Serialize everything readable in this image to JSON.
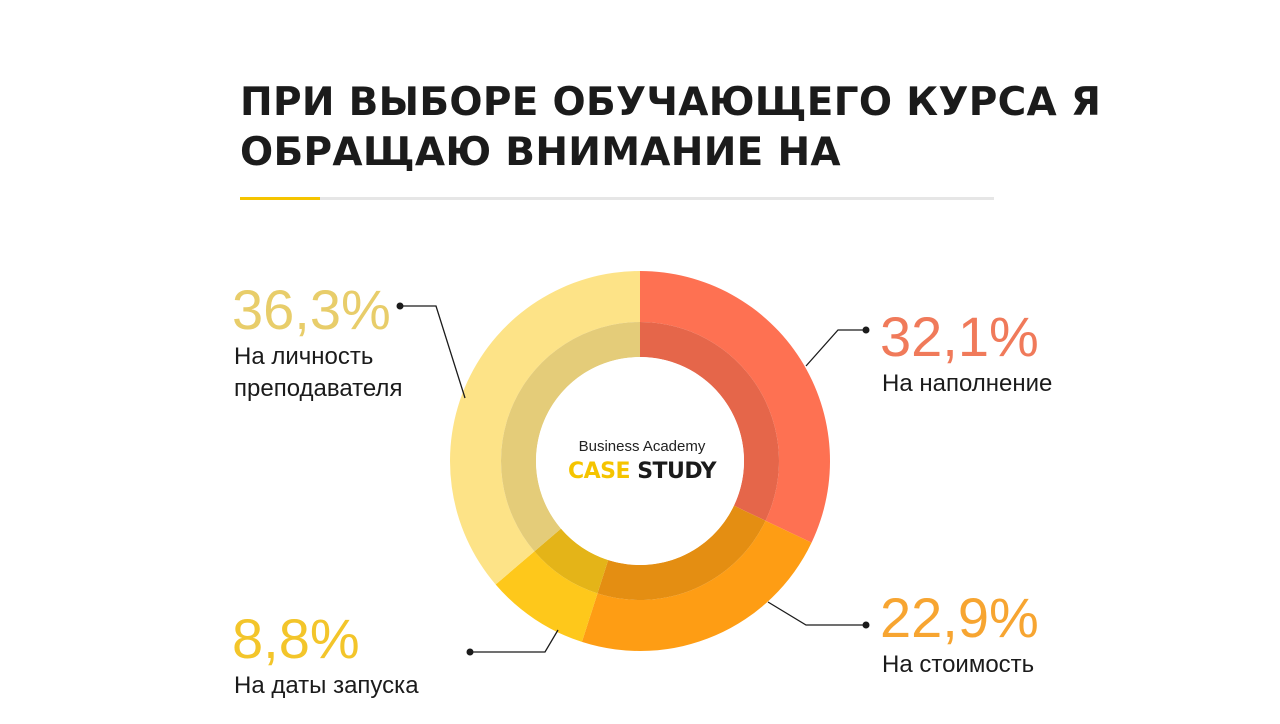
{
  "title": {
    "line1": "ПРИ ВЫБОРЕ ОБУЧАЮЩЕГО КУРСА Я",
    "line2": "ОБРАЩАЮ ВНИМАНИЕ НА"
  },
  "logo": {
    "top": "Business Academy",
    "case": "CASE",
    "study": "STUDY"
  },
  "colors": {
    "accent": "#f5c400",
    "title": "#1b1b1b"
  },
  "chart_data": {
    "type": "pie",
    "donut": true,
    "title": "ПРИ ВЫБОРЕ ОБУЧАЮЩЕГО КУРСА Я ОБРАЩАЮ ВНИМАНИЕ НА",
    "slices": [
      {
        "value": 32.1,
        "value_label": "32,1%",
        "label": "На наполнение",
        "color": "#fe7152",
        "inner_color": "#e5664a",
        "label_color": "#f07a5a"
      },
      {
        "value": 22.9,
        "value_label": "22,9%",
        "label": "На стоимость",
        "color": "#fe9d14",
        "inner_color": "#e48e12",
        "label_color": "#f7a531"
      },
      {
        "value": 8.8,
        "value_label": "8,8%",
        "label": "На даты запуска",
        "color": "#fec81b",
        "inner_color": "#e4b418",
        "label_color": "#f3c52a"
      },
      {
        "value": 36.3,
        "value_label": "36,3%",
        "label": "На личность преподавателя",
        "label_lines": [
          "На личность",
          "преподавателя"
        ],
        "color": "#fde387",
        "inner_color": "#e4cc79",
        "label_color": "#e8cd6a"
      }
    ]
  }
}
